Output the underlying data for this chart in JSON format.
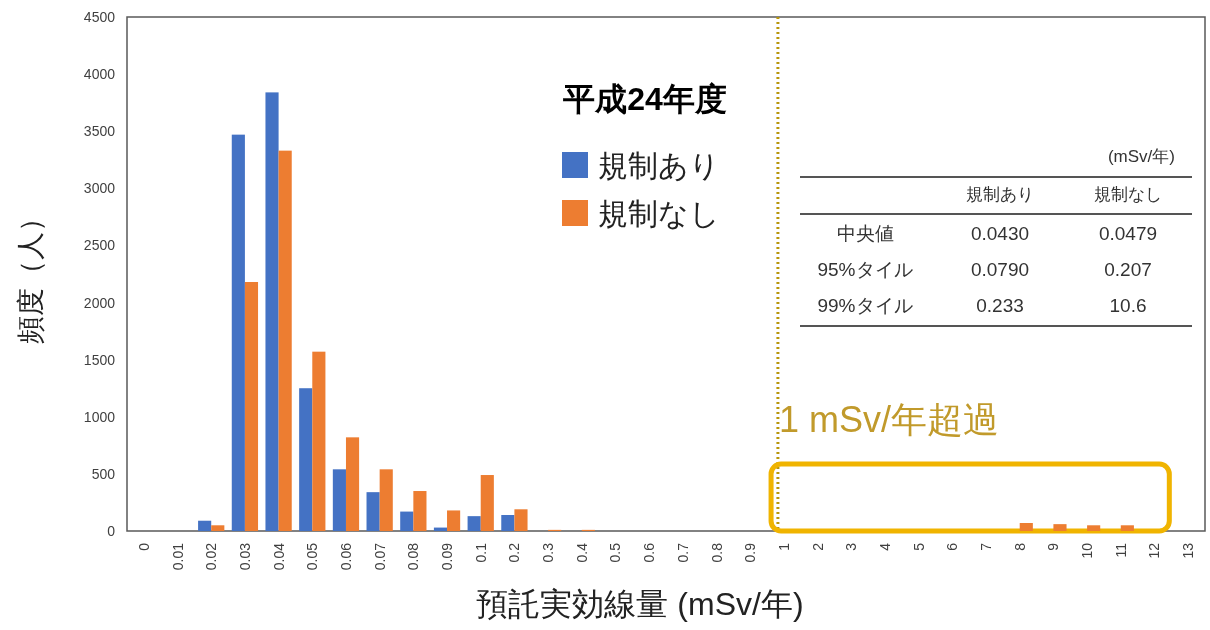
{
  "chart_data": {
    "type": "bar",
    "title": "平成24年度",
    "xlabel": "預託実効線量 (mSv/年)",
    "ylabel": "頻度（人）",
    "categories": [
      "0",
      "0.01",
      "0.02",
      "0.03",
      "0.04",
      "0.05",
      "0.06",
      "0.07",
      "0.08",
      "0.09",
      "0.1",
      "0.2",
      "0.3",
      "0.4",
      "0.5",
      "0.6",
      "0.7",
      "0.8",
      "0.9",
      "1",
      "2",
      "3",
      "4",
      "5",
      "6",
      "7",
      "8",
      "9",
      "10",
      "11",
      "12",
      "13"
    ],
    "series": [
      {
        "name": "規制あり",
        "color": "#4472c4",
        "values": [
          0,
          0,
          90,
          3470,
          3840,
          1250,
          540,
          340,
          170,
          30,
          130,
          140,
          0,
          0,
          0,
          0,
          0,
          0,
          0,
          0,
          0,
          0,
          0,
          0,
          0,
          0,
          0,
          0,
          0,
          0,
          0,
          0
        ]
      },
      {
        "name": "規制なし",
        "color": "#ed7d31",
        "values": [
          0,
          0,
          50,
          2180,
          3330,
          1570,
          820,
          540,
          350,
          180,
          490,
          190,
          10,
          10,
          0,
          0,
          0,
          0,
          0,
          0,
          0,
          0,
          0,
          0,
          0,
          0,
          70,
          60,
          50,
          50,
          0,
          0
        ]
      }
    ],
    "ylim": [
      0,
      4500
    ],
    "yticks": [
      0,
      500,
      1000,
      1500,
      2000,
      2500,
      3000,
      3500,
      4000,
      4500
    ],
    "grid": false,
    "legend": "top",
    "ref_lines": [
      {
        "axis": "x",
        "value": "1",
        "color": "#b8960c",
        "line_style": "dotted"
      }
    ],
    "annotations": [
      "1 mSv/年超過",
      "(mSv/年)",
      "規制あり",
      "規制なし",
      "中央値",
      "0.0430",
      "0.0479",
      "95%タイル",
      "0.0790",
      "0.207",
      "99%タイル",
      "0.233",
      "10.6"
    ]
  }
}
